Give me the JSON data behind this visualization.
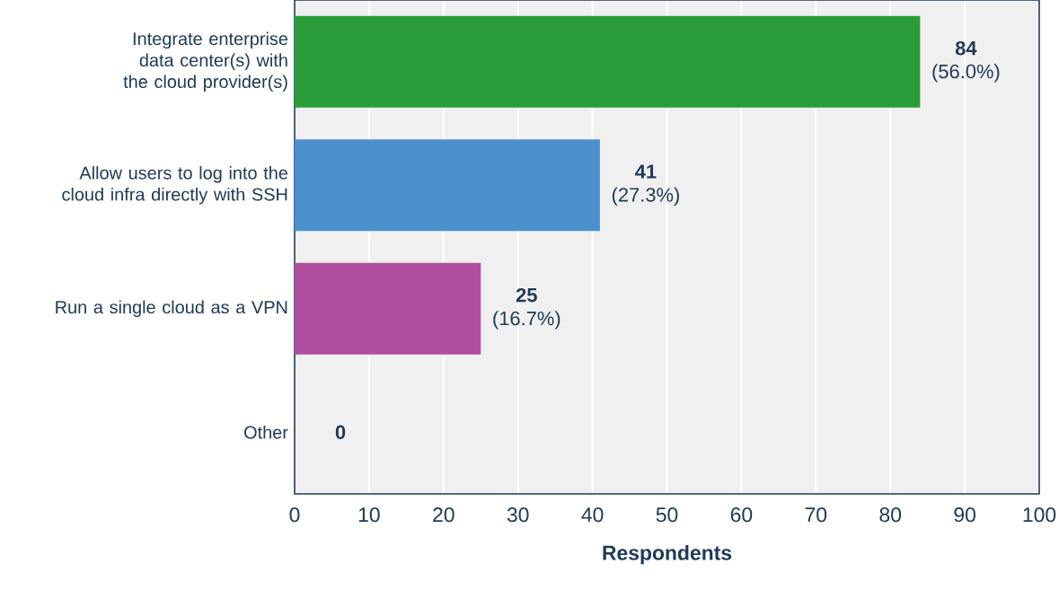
{
  "chart_data": {
    "type": "bar",
    "orientation": "horizontal",
    "xlabel": "Respondents",
    "categories": [
      "Integrate enterprise data center(s) with the cloud provider(s)",
      "Allow users to log into the cloud infra directly with SSH",
      "Run a single cloud as a VPN",
      "Other"
    ],
    "values": [
      84,
      41,
      25,
      0
    ],
    "colors": [
      "#2a9d3a",
      "#4b90cc",
      "#b04ea0",
      "#b04ea0"
    ],
    "value_labels": [
      "**84** (56.0%)",
      "**41** (27.3%)",
      "**25** (16.7%)",
      "**0**"
    ],
    "xlim": [
      0,
      100
    ],
    "xticks": [
      0,
      10,
      20,
      30,
      40,
      50,
      60,
      70,
      80,
      90,
      100
    ],
    "grid": "x"
  }
}
